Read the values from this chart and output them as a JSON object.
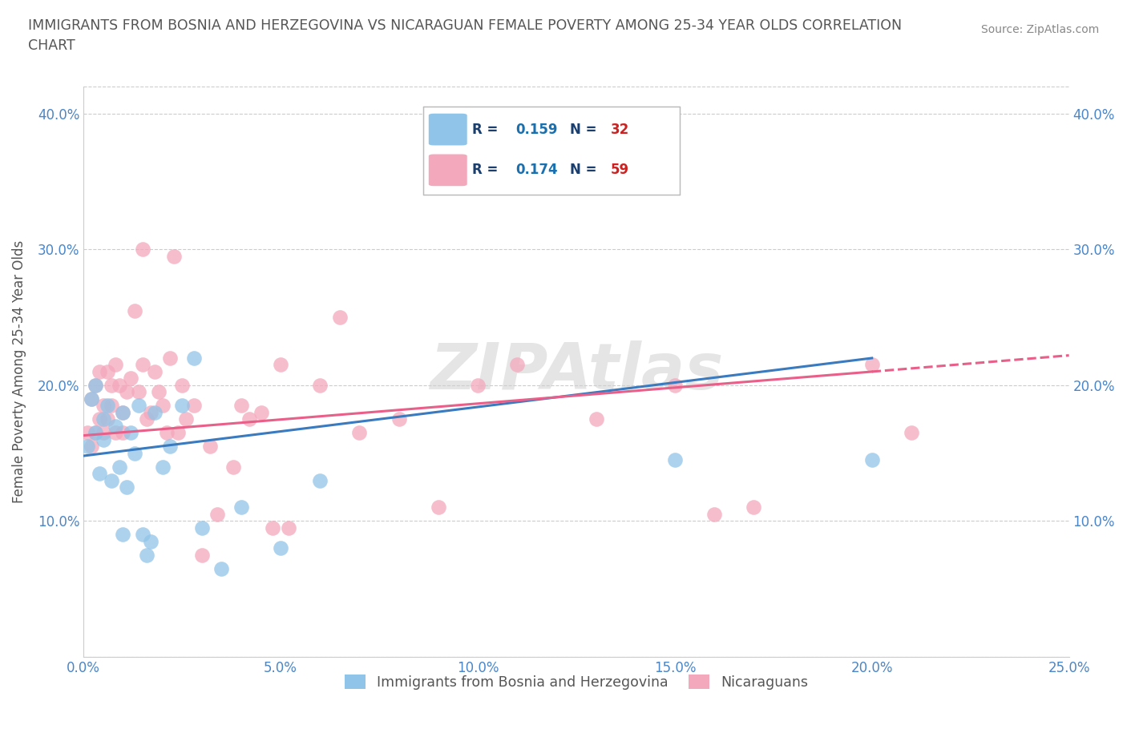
{
  "title": "IMMIGRANTS FROM BOSNIA AND HERZEGOVINA VS NICARAGUAN FEMALE POVERTY AMONG 25-34 YEAR OLDS CORRELATION\nCHART",
  "source": "Source: ZipAtlas.com",
  "xlabel_label": "Immigrants from Bosnia and Herzegovina",
  "ylabel_label": "Female Poverty Among 25-34 Year Olds",
  "xlim": [
    0.0,
    0.25
  ],
  "ylim": [
    0.0,
    0.42
  ],
  "xticks": [
    0.0,
    0.05,
    0.1,
    0.15,
    0.2,
    0.25
  ],
  "yticks": [
    0.0,
    0.1,
    0.2,
    0.3,
    0.4
  ],
  "xticklabels": [
    "0.0%",
    "5.0%",
    "10.0%",
    "15.0%",
    "20.0%",
    "25.0%"
  ],
  "yticklabels": [
    "",
    "10.0%",
    "20.0%",
    "30.0%",
    "40.0%"
  ],
  "blue_color": "#90c4e8",
  "pink_color": "#f4a8bc",
  "blue_line_color": "#3a7abf",
  "pink_line_color": "#e8608a",
  "title_color": "#555555",
  "R_blue": 0.159,
  "N_blue": 32,
  "R_pink": 0.174,
  "N_pink": 59,
  "legend_label_color": "#1a3f6f",
  "legend_value_color_R": "#1a6faf",
  "legend_value_color_N": "#cc2222",
  "blue_scatter_x": [
    0.001,
    0.002,
    0.003,
    0.003,
    0.004,
    0.005,
    0.005,
    0.006,
    0.007,
    0.008,
    0.009,
    0.01,
    0.01,
    0.011,
    0.012,
    0.013,
    0.014,
    0.015,
    0.016,
    0.017,
    0.018,
    0.02,
    0.022,
    0.025,
    0.028,
    0.03,
    0.035,
    0.04,
    0.05,
    0.06,
    0.15,
    0.2
  ],
  "blue_scatter_y": [
    0.155,
    0.19,
    0.165,
    0.2,
    0.135,
    0.175,
    0.16,
    0.185,
    0.13,
    0.17,
    0.14,
    0.18,
    0.09,
    0.125,
    0.165,
    0.15,
    0.185,
    0.09,
    0.075,
    0.085,
    0.18,
    0.14,
    0.155,
    0.185,
    0.22,
    0.095,
    0.065,
    0.11,
    0.08,
    0.13,
    0.145,
    0.145
  ],
  "pink_scatter_x": [
    0.001,
    0.002,
    0.002,
    0.003,
    0.003,
    0.004,
    0.004,
    0.005,
    0.005,
    0.006,
    0.006,
    0.007,
    0.007,
    0.008,
    0.008,
    0.009,
    0.01,
    0.01,
    0.011,
    0.012,
    0.013,
    0.014,
    0.015,
    0.015,
    0.016,
    0.017,
    0.018,
    0.019,
    0.02,
    0.021,
    0.022,
    0.023,
    0.024,
    0.025,
    0.026,
    0.028,
    0.03,
    0.032,
    0.034,
    0.038,
    0.04,
    0.042,
    0.045,
    0.048,
    0.05,
    0.052,
    0.06,
    0.065,
    0.07,
    0.08,
    0.09,
    0.1,
    0.11,
    0.13,
    0.15,
    0.16,
    0.17,
    0.2,
    0.21
  ],
  "pink_scatter_y": [
    0.165,
    0.155,
    0.19,
    0.2,
    0.165,
    0.175,
    0.21,
    0.185,
    0.165,
    0.21,
    0.175,
    0.185,
    0.2,
    0.165,
    0.215,
    0.2,
    0.18,
    0.165,
    0.195,
    0.205,
    0.255,
    0.195,
    0.215,
    0.3,
    0.175,
    0.18,
    0.21,
    0.195,
    0.185,
    0.165,
    0.22,
    0.295,
    0.165,
    0.2,
    0.175,
    0.185,
    0.075,
    0.155,
    0.105,
    0.14,
    0.185,
    0.175,
    0.18,
    0.095,
    0.215,
    0.095,
    0.2,
    0.25,
    0.165,
    0.175,
    0.11,
    0.2,
    0.215,
    0.175,
    0.2,
    0.105,
    0.11,
    0.215,
    0.165
  ]
}
